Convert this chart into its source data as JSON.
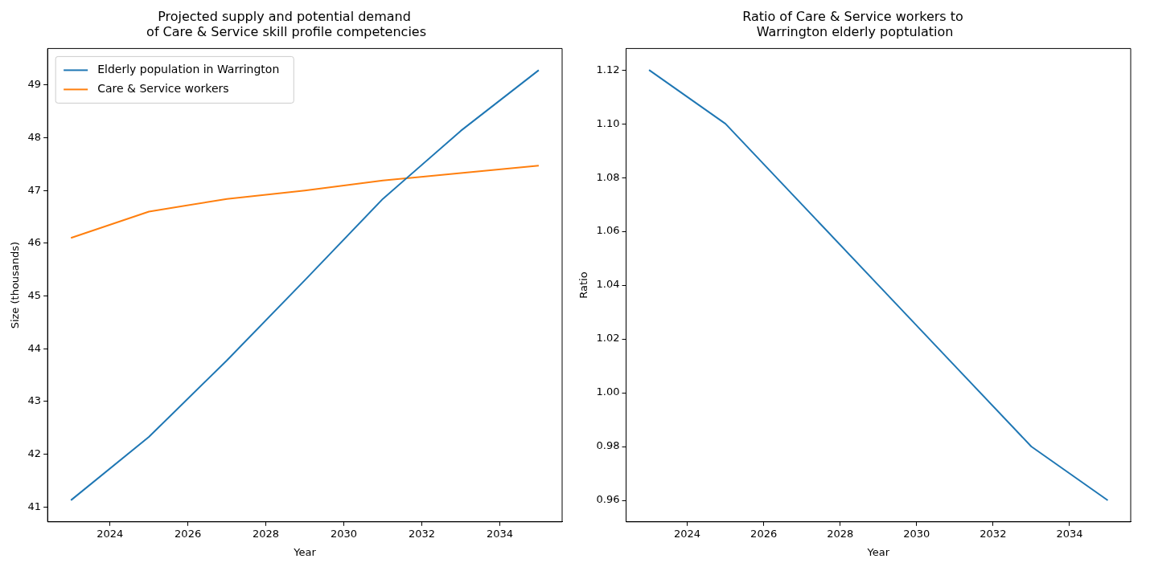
{
  "chart_data": [
    {
      "type": "line",
      "title": "Projected supply and potential demand\n of Care & Service skill profile competencies",
      "xlabel": "Year",
      "ylabel": "Size (thousands)",
      "x": [
        2023,
        2025,
        2027,
        2029,
        2031,
        2033,
        2035
      ],
      "series": [
        {
          "name": "Elderly population in Warrington",
          "color": "#1f77b4",
          "values": [
            41.13,
            42.33,
            43.78,
            45.3,
            46.84,
            48.13,
            49.28
          ]
        },
        {
          "name": "Care & Service workers",
          "color": "#ff7f0e",
          "values": [
            46.1,
            46.6,
            46.84,
            47.0,
            47.19,
            47.33,
            47.47
          ]
        }
      ],
      "xlim": [
        2022.4,
        2035.6
      ],
      "xticks": [
        2024,
        2026,
        2028,
        2030,
        2032,
        2034
      ],
      "ylim": [
        40.72,
        49.69
      ],
      "yticks": [
        41,
        42,
        43,
        44,
        45,
        46,
        47,
        48,
        49
      ],
      "grid": false,
      "legend": "top left",
      "marker": "none",
      "line_style": "solid"
    },
    {
      "type": "line",
      "title": "Ratio of Care & Service workers to\n Warrington elderly poptulation",
      "xlabel": "Year",
      "ylabel": "Ratio",
      "x": [
        2023,
        2025,
        2027,
        2029,
        2031,
        2033,
        2035
      ],
      "series": [
        {
          "color": "#1f77b4",
          "values": [
            1.12,
            1.1,
            1.07,
            1.04,
            1.01,
            0.98,
            0.96
          ]
        }
      ],
      "xlim": [
        2022.4,
        2035.6
      ],
      "xticks": [
        2024,
        2026,
        2028,
        2030,
        2032,
        2034
      ],
      "ylim": [
        0.952,
        1.128
      ],
      "yticks": [
        {
          "value": 0.96,
          "label": "0.96"
        },
        {
          "value": 0.98,
          "label": "0.98"
        },
        {
          "value": 1.0,
          "label": "1.00"
        },
        {
          "value": 1.02,
          "label": "1.02"
        },
        {
          "value": 1.04,
          "label": "1.04"
        },
        {
          "value": 1.06,
          "label": "1.06"
        },
        {
          "value": 1.08,
          "label": "1.08"
        },
        {
          "value": 1.1,
          "label": "1.10"
        },
        {
          "value": 1.12,
          "label": "1.12"
        }
      ],
      "grid": false,
      "legend": false,
      "marker": "none",
      "line_style": "solid"
    }
  ]
}
